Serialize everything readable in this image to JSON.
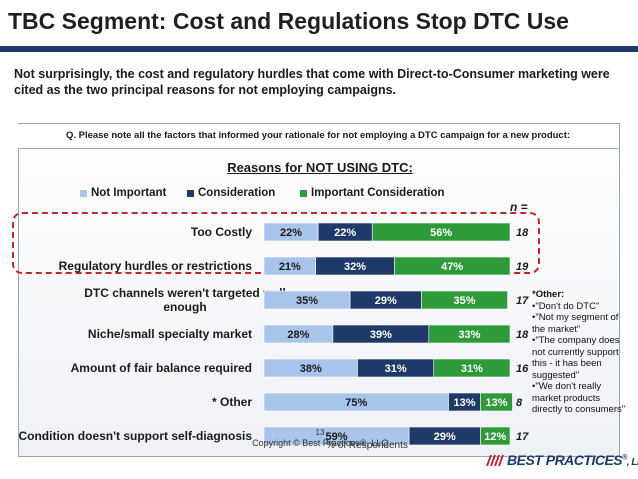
{
  "page": {
    "title": "TBC Segment: Cost and Regulations Stop DTC Use",
    "intro": "Not surprisingly, the cost and regulatory hurdles that come with Direct-to-Consumer marketing were cited as the two principal reasons for not employing campaigns.",
    "question": "Q. Please note all the factors that informed your rationale for not employing a DTC campaign for a new product:",
    "n_label": "n =",
    "other_note_heading": "*Other:",
    "other_note_items": [
      "\"Don't do DTC\"",
      "\"Not my segment of the market\"",
      "\"The company does not currently support this - it has been suggested\"",
      "\"We don't really market products directly to consumers\""
    ],
    "page_number": "13",
    "copyright": "Copyright © Best Practices®, LLC",
    "logo_text": "BEST PRACTICES",
    "logo_reg": "®",
    "logo_llc": ", LLC"
  },
  "colors": {
    "not_important": "#a9c4ea",
    "consideration": "#1f3a68",
    "important": "#2e9a3a",
    "highlight": "#c0272d",
    "title_rule": "#1e3a6a"
  },
  "chart_data": {
    "type": "bar",
    "orientation": "horizontal",
    "stacked": true,
    "title": "Reasons for NOT USING DTC:",
    "xlabel": "% of Respondents",
    "xlim": [
      0,
      100
    ],
    "legend_position": "top",
    "categories": [
      "Too Costly",
      "Regulatory hurdles or restrictions",
      "DTC channels weren't targeted well enough",
      "Niche/small specialty market",
      "Amount of fair balance required",
      "* Other",
      "Condition doesn't support self-diagnosis"
    ],
    "series": [
      {
        "name": "Not Important",
        "values": [
          22,
          21,
          35,
          28,
          38,
          75,
          59
        ]
      },
      {
        "name": "Consideration",
        "values": [
          22,
          32,
          29,
          39,
          31,
          13,
          29
        ]
      },
      {
        "name": "Important Consideration",
        "values": [
          56,
          47,
          35,
          33,
          31,
          13,
          12
        ]
      }
    ],
    "n": [
      18,
      19,
      17,
      18,
      16,
      8,
      17
    ]
  }
}
